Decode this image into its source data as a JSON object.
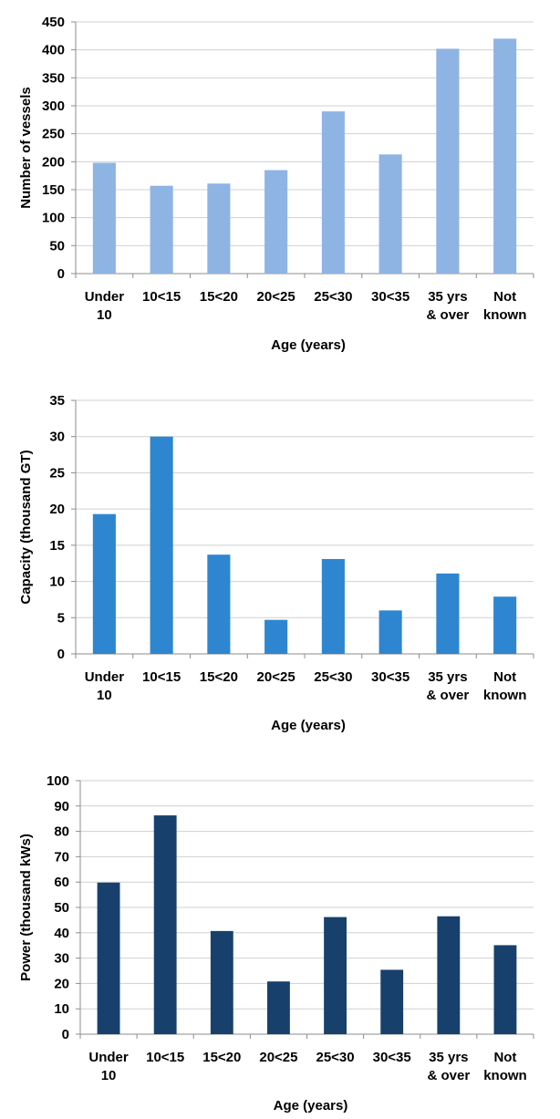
{
  "chart_data": [
    {
      "type": "bar",
      "categories": [
        "Under 10",
        "10<15",
        "15<20",
        "20<25",
        "25<30",
        "30<35",
        "35 yrs & over",
        "Not known"
      ],
      "values": [
        198,
        157,
        161,
        185,
        290,
        213,
        402,
        420
      ],
      "xlabel": "Age (years)",
      "ylabel": "Number of vessels",
      "ylim": [
        0,
        450
      ],
      "yticks": [
        0,
        50,
        100,
        150,
        200,
        250,
        300,
        350,
        400,
        450
      ],
      "grid": true,
      "color": "#8eb4e3"
    },
    {
      "type": "bar",
      "categories": [
        "Under 10",
        "10<15",
        "15<20",
        "20<25",
        "25<30",
        "30<35",
        "35 yrs & over",
        "Not known"
      ],
      "values": [
        19.3,
        30.0,
        13.7,
        4.7,
        13.1,
        6.0,
        11.1,
        7.9
      ],
      "xlabel": "Age (years)",
      "ylabel": "Capacity (thousand GT)",
      "ylim": [
        0,
        35
      ],
      "yticks": [
        0,
        5,
        10,
        15,
        20,
        25,
        30,
        35
      ],
      "grid": true,
      "color": "#2e86d0"
    },
    {
      "type": "bar",
      "categories": [
        "Under 10",
        "10<15",
        "15<20",
        "20<25",
        "25<30",
        "30<35",
        "35 yrs & over",
        "Not known"
      ],
      "values": [
        59.8,
        86.3,
        40.7,
        20.8,
        46.2,
        25.4,
        46.5,
        35.1
      ],
      "xlabel": "Age (years)",
      "ylabel": "Power (thousand kWs)",
      "ylim": [
        0,
        100
      ],
      "yticks": [
        0,
        10,
        20,
        30,
        40,
        50,
        60,
        70,
        80,
        90,
        100
      ],
      "grid": true,
      "color": "#17406d"
    }
  ]
}
